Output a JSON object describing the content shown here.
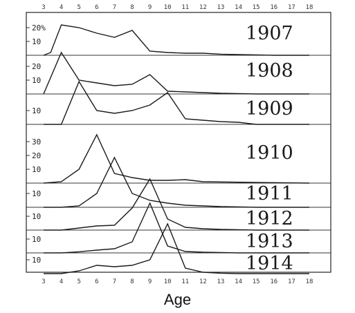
{
  "chart_data": {
    "type": "line",
    "xlabel": "Age",
    "x_ticks": [
      3,
      4,
      5,
      6,
      7,
      8,
      9,
      10,
      11,
      12,
      13,
      14,
      15,
      16,
      17,
      18
    ],
    "xlim": [
      3,
      18
    ],
    "grid": false,
    "panels": [
      {
        "label": "1907",
        "y_tick_labels": [
          "20%",
          "10"
        ],
        "y_ticks": [
          20,
          10
        ],
        "x": [
          3,
          3.4,
          4,
          5,
          6,
          7,
          8,
          9,
          10,
          11,
          12,
          13,
          14,
          15,
          16,
          18
        ],
        "y": [
          0,
          2,
          22,
          20,
          16,
          13,
          18,
          3,
          2,
          1.5,
          1.5,
          0.8,
          0.5,
          0.3,
          0,
          0
        ]
      },
      {
        "label": "1908",
        "y_tick_labels": [
          "20",
          "10"
        ],
        "y_ticks": [
          20,
          10
        ],
        "x": [
          3,
          4,
          5,
          6,
          7,
          8,
          9,
          10,
          11,
          12,
          13,
          14,
          15,
          16,
          18
        ],
        "y": [
          0,
          30,
          10,
          8,
          6,
          7,
          14,
          2,
          1.5,
          1,
          0.5,
          0.3,
          0,
          0,
          0
        ]
      },
      {
        "label": "1909",
        "y_tick_labels": [
          "10"
        ],
        "y_ticks": [
          10
        ],
        "x": [
          3,
          4,
          5,
          6,
          7,
          8,
          9,
          10,
          11,
          12,
          13,
          14,
          15,
          16,
          18
        ],
        "y": [
          0,
          0,
          31,
          10,
          8,
          10,
          14,
          23,
          4,
          3,
          2,
          1.5,
          0,
          0,
          0
        ]
      },
      {
        "label": "1910",
        "y_tick_labels": [
          "30",
          "20",
          "10"
        ],
        "y_ticks": [
          30,
          20,
          10
        ],
        "x": [
          3,
          4,
          5,
          6,
          7,
          8,
          9,
          10,
          11,
          12,
          18
        ],
        "y": [
          0,
          1,
          10,
          35,
          7,
          4,
          2,
          2,
          2.5,
          1,
          0
        ]
      },
      {
        "label": "1911",
        "y_tick_labels": [
          "10"
        ],
        "y_ticks": [
          10
        ],
        "x": [
          3,
          4,
          5,
          6,
          7,
          8,
          9,
          10,
          11,
          12,
          13,
          14,
          15,
          16,
          18
        ],
        "y": [
          0,
          0,
          1,
          10,
          36,
          10,
          5,
          3,
          1.5,
          1,
          0.5,
          0.3,
          0,
          0,
          0
        ]
      },
      {
        "label": "1912",
        "y_tick_labels": [
          "10"
        ],
        "y_ticks": [
          10
        ],
        "x": [
          3,
          4,
          5,
          6,
          7,
          8,
          9,
          10,
          11,
          12,
          13,
          14,
          15,
          16,
          18
        ],
        "y": [
          0,
          0,
          1.5,
          3,
          3.5,
          16,
          37,
          8,
          2,
          1,
          0.5,
          0.3,
          0,
          0,
          0
        ]
      },
      {
        "label": "1913",
        "y_tick_labels": [
          "10"
        ],
        "y_ticks": [
          10
        ],
        "x": [
          3,
          4,
          5,
          6,
          7,
          8,
          9,
          10,
          11,
          12,
          13,
          14,
          15,
          16,
          18
        ],
        "y": [
          0,
          0,
          0.8,
          2,
          3,
          8,
          36,
          5,
          1,
          0.5,
          0.3,
          0,
          0,
          0,
          0
        ]
      },
      {
        "label": "1914",
        "y_tick_labels": [
          "10"
        ],
        "y_ticks": [
          10
        ],
        "x": [
          3,
          4,
          5,
          6,
          7,
          8,
          9,
          10,
          11,
          12,
          13,
          14,
          15,
          16,
          18
        ],
        "y": [
          0,
          0,
          2,
          6,
          5,
          6,
          10,
          36,
          4,
          1,
          0.3,
          0,
          0,
          0,
          0
        ]
      }
    ]
  }
}
